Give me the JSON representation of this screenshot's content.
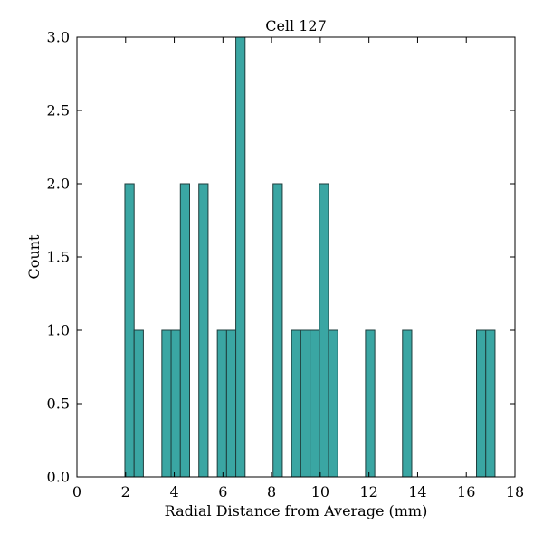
{
  "chart_data": {
    "type": "bar",
    "title": "Cell 127",
    "xlabel": "Radial Distance from Average (mm)",
    "ylabel": "Count",
    "xlim": [
      0,
      18
    ],
    "ylim": [
      0,
      3.0
    ],
    "x_ticks": [
      "0",
      "2",
      "4",
      "6",
      "8",
      "10",
      "12",
      "14",
      "16",
      "18"
    ],
    "y_ticks": [
      "0.0",
      "0.5",
      "1.0",
      "1.5",
      "2.0",
      "2.5",
      "3.0"
    ],
    "grid": false,
    "bar_color": "#3aa6a3",
    "edge_color": "#1f3d3c",
    "bin_width": 0.38,
    "bins": [
      {
        "x": 1.97,
        "count": 2
      },
      {
        "x": 2.35,
        "count": 1
      },
      {
        "x": 3.49,
        "count": 1
      },
      {
        "x": 3.87,
        "count": 1
      },
      {
        "x": 4.25,
        "count": 2
      },
      {
        "x": 5.01,
        "count": 2
      },
      {
        "x": 5.77,
        "count": 1
      },
      {
        "x": 6.15,
        "count": 1
      },
      {
        "x": 6.53,
        "count": 3
      },
      {
        "x": 8.06,
        "count": 2
      },
      {
        "x": 8.82,
        "count": 1
      },
      {
        "x": 9.2,
        "count": 1
      },
      {
        "x": 9.58,
        "count": 1
      },
      {
        "x": 9.96,
        "count": 2
      },
      {
        "x": 10.34,
        "count": 1
      },
      {
        "x": 11.86,
        "count": 1
      },
      {
        "x": 13.38,
        "count": 1
      },
      {
        "x": 16.42,
        "count": 1
      },
      {
        "x": 16.8,
        "count": 1
      }
    ]
  }
}
